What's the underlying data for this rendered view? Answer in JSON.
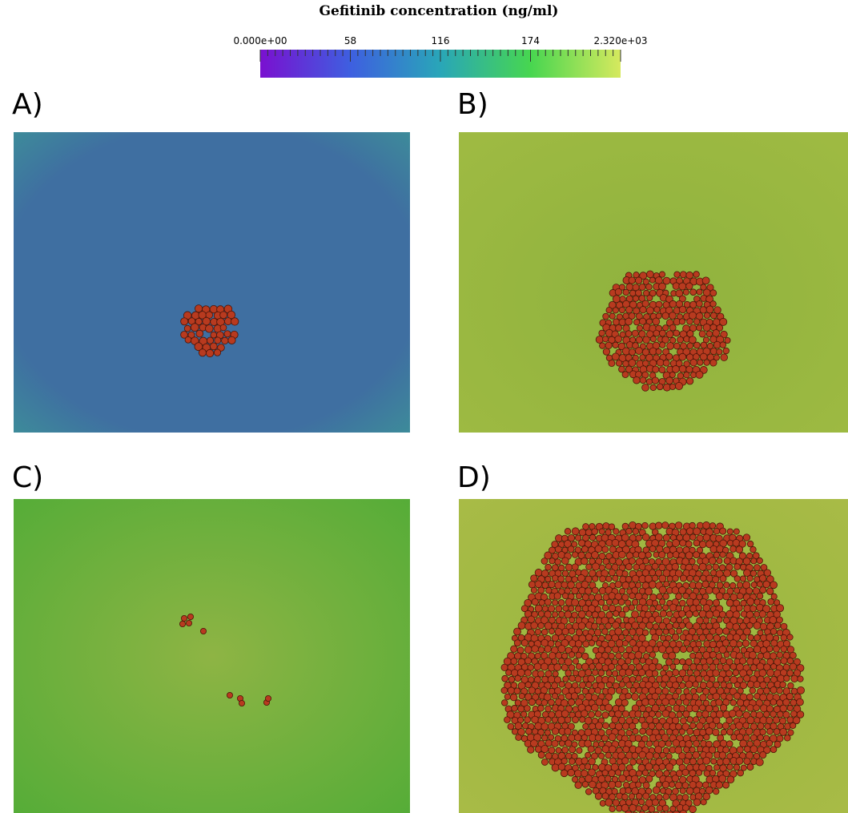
{
  "colorbar": {
    "title": "Gefitinib concentration (ng/ml)",
    "ticks": [
      "0.000e+00",
      "58",
      "116",
      "174",
      "2.320e+03"
    ]
  },
  "panels": [
    {
      "label": "A)"
    },
    {
      "label": "B)"
    },
    {
      "label": "C)"
    },
    {
      "label": "D)"
    }
  ]
}
